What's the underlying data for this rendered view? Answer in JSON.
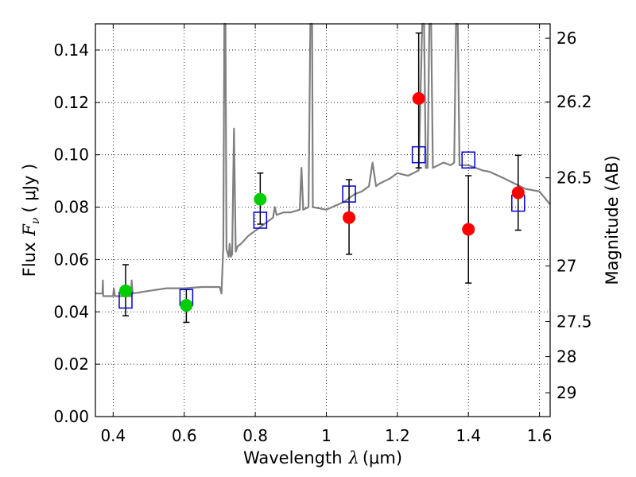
{
  "chart_data": {
    "type": "scatter",
    "title": "",
    "xlabel": {
      "prefix": "Wavelength",
      "symbol": "λ",
      "unit": "(μm)"
    },
    "ylabel": {
      "prefix": "Flux",
      "symbol": "F",
      "subscript": "ν",
      "unit": "( μJy )"
    },
    "y2label": "Magnitude (AB)",
    "xlim": [
      0.35,
      1.63
    ],
    "ylim": [
      0.0,
      0.15
    ],
    "grid": true,
    "x_ticks": [
      0.4,
      0.6,
      0.8,
      1.0,
      1.2,
      1.4,
      1.6
    ],
    "x_tick_labels": [
      "0.4",
      "0.6",
      "0.8",
      "1",
      "1.2",
      "1.4",
      "1.6"
    ],
    "y_ticks": [
      0.0,
      0.02,
      0.04,
      0.06,
      0.08,
      0.1,
      0.12,
      0.14
    ],
    "y_tick_labels": [
      "0.00",
      "0.02",
      "0.04",
      "0.06",
      "0.08",
      "0.10",
      "0.12",
      "0.14"
    ],
    "y2_ticks": [
      {
        "label": "26",
        "flux": 0.1445
      },
      {
        "label": "26.2",
        "flux": 0.1202
      },
      {
        "label": "26.5",
        "flux": 0.0912
      },
      {
        "label": "27",
        "flux": 0.0575
      },
      {
        "label": "27.5",
        "flux": 0.0363
      },
      {
        "label": "28",
        "flux": 0.0229
      },
      {
        "label": "29",
        "flux": 0.0091
      }
    ],
    "series": [
      {
        "kind": "spectrum",
        "color": "#808080",
        "points": [
          [
            0.35,
            0.047
          ],
          [
            0.37,
            0.047
          ],
          [
            0.371,
            0.052
          ],
          [
            0.372,
            0.046
          ],
          [
            0.4,
            0.046
          ],
          [
            0.402,
            0.049
          ],
          [
            0.405,
            0.046
          ],
          [
            0.45,
            0.046
          ],
          [
            0.452,
            0.052
          ],
          [
            0.455,
            0.047
          ],
          [
            0.5,
            0.048
          ],
          [
            0.55,
            0.049
          ],
          [
            0.6,
            0.049
          ],
          [
            0.65,
            0.0495
          ],
          [
            0.7,
            0.0495
          ],
          [
            0.705,
            0.047
          ],
          [
            0.71,
            0.065
          ],
          [
            0.713,
            0.15
          ],
          [
            0.716,
            0.15
          ],
          [
            0.719,
            0.064
          ],
          [
            0.725,
            0.061
          ],
          [
            0.728,
            0.066
          ],
          [
            0.731,
            0.061
          ],
          [
            0.735,
            0.062
          ],
          [
            0.74,
            0.11
          ],
          [
            0.745,
            0.063
          ],
          [
            0.75,
            0.065
          ],
          [
            0.76,
            0.066
          ],
          [
            0.78,
            0.069
          ],
          [
            0.8,
            0.071
          ],
          [
            0.82,
            0.073
          ],
          [
            0.85,
            0.076
          ],
          [
            0.855,
            0.08
          ],
          [
            0.86,
            0.077
          ],
          [
            0.88,
            0.078
          ],
          [
            0.9,
            0.078
          ],
          [
            0.925,
            0.079
          ],
          [
            0.93,
            0.095
          ],
          [
            0.935,
            0.079
          ],
          [
            0.95,
            0.08
          ],
          [
            0.955,
            0.15
          ],
          [
            0.96,
            0.15
          ],
          [
            0.962,
            0.08
          ],
          [
            1.0,
            0.079
          ],
          [
            1.05,
            0.082
          ],
          [
            1.08,
            0.085
          ],
          [
            1.1,
            0.086
          ],
          [
            1.12,
            0.088
          ],
          [
            1.13,
            0.097
          ],
          [
            1.14,
            0.088
          ],
          [
            1.15,
            0.089
          ],
          [
            1.18,
            0.091
          ],
          [
            1.2,
            0.093
          ],
          [
            1.23,
            0.092
          ],
          [
            1.26,
            0.094
          ],
          [
            1.27,
            0.15
          ],
          [
            1.275,
            0.15
          ],
          [
            1.28,
            0.095
          ],
          [
            1.285,
            0.095
          ],
          [
            1.29,
            0.15
          ],
          [
            1.295,
            0.15
          ],
          [
            1.3,
            0.095
          ],
          [
            1.33,
            0.097
          ],
          [
            1.35,
            0.096
          ],
          [
            1.36,
            0.097
          ],
          [
            1.365,
            0.15
          ],
          [
            1.37,
            0.15
          ],
          [
            1.375,
            0.096
          ],
          [
            1.4,
            0.096
          ],
          [
            1.44,
            0.094
          ],
          [
            1.46,
            0.0935
          ],
          [
            1.5,
            0.091
          ],
          [
            1.53,
            0.089
          ],
          [
            1.56,
            0.087
          ],
          [
            1.6,
            0.086
          ],
          [
            1.63,
            0.081
          ]
        ]
      },
      {
        "kind": "model-photometry",
        "marker": "open-square",
        "color": "#0000cc",
        "points": [
          [
            0.435,
            0.0445
          ],
          [
            0.606,
            0.0455
          ],
          [
            0.814,
            0.075
          ],
          [
            1.064,
            0.085
          ],
          [
            1.26,
            0.1
          ],
          [
            1.4,
            0.098
          ],
          [
            1.54,
            0.0815
          ]
        ]
      },
      {
        "kind": "observed-photometry",
        "color": "#00cc00",
        "points": [
          {
            "x": 0.435,
            "y": 0.048,
            "err_lo": 0.0385,
            "err_hi": 0.058
          },
          {
            "x": 0.606,
            "y": 0.0425,
            "err_lo": 0.036,
            "err_hi": 0.0485
          },
          {
            "x": 0.814,
            "y": 0.083,
            "err_lo": 0.0735,
            "err_hi": 0.093
          }
        ]
      },
      {
        "kind": "observed-photometry",
        "color": "#ff0000",
        "points": [
          {
            "x": 1.064,
            "y": 0.076,
            "err_lo": 0.062,
            "err_hi": 0.0905
          },
          {
            "x": 1.26,
            "y": 0.1215,
            "err_lo": 0.095,
            "err_hi": 0.1465
          },
          {
            "x": 1.4,
            "y": 0.0715,
            "err_lo": 0.051,
            "err_hi": 0.092
          },
          {
            "x": 1.54,
            "y": 0.0855,
            "err_lo": 0.0712,
            "err_hi": 0.0998
          }
        ]
      }
    ]
  }
}
